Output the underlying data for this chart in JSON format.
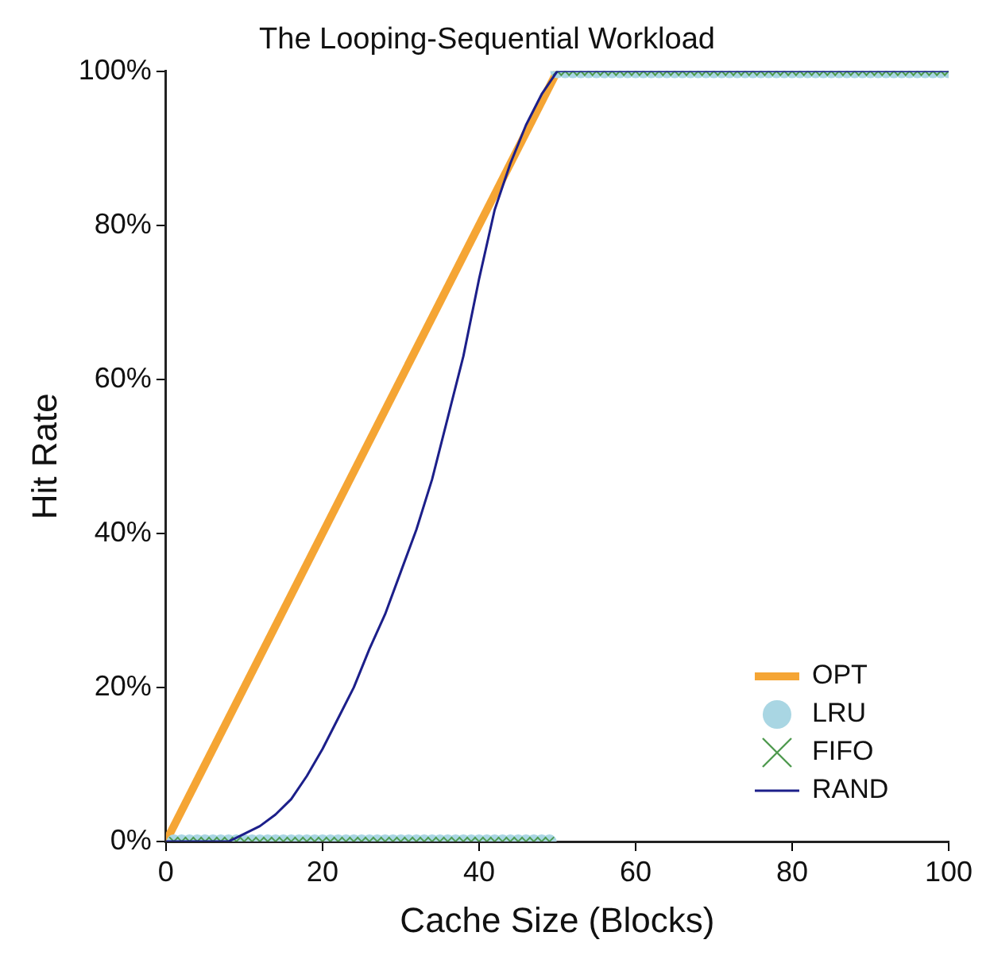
{
  "chart_data": {
    "type": "line",
    "title": "The Looping-Sequential Workload",
    "xlabel": "Cache Size (Blocks)",
    "ylabel": "Hit Rate",
    "x": [
      1,
      2,
      3,
      4,
      5,
      6,
      7,
      8,
      9,
      10,
      11,
      12,
      13,
      14,
      15,
      16,
      17,
      18,
      19,
      20,
      21,
      22,
      23,
      24,
      25,
      26,
      27,
      28,
      29,
      30,
      31,
      32,
      33,
      34,
      35,
      36,
      37,
      38,
      39,
      40,
      41,
      42,
      43,
      44,
      45,
      46,
      47,
      48,
      49,
      50,
      51,
      52,
      53,
      54,
      55,
      56,
      57,
      58,
      59,
      60,
      61,
      62,
      63,
      64,
      65,
      66,
      67,
      68,
      69,
      70,
      71,
      72,
      73,
      74,
      75,
      76,
      77,
      78,
      79,
      80,
      81,
      82,
      83,
      84,
      85,
      86,
      87,
      88,
      89,
      90,
      91,
      92,
      93,
      94,
      95,
      96,
      97,
      98,
      99,
      100
    ],
    "series": [
      {
        "name": "OPT",
        "color": "#f5a534",
        "marker": "none",
        "x": [
          0,
          50
        ],
        "values": [
          0,
          100
        ]
      },
      {
        "name": "LRU",
        "type": "scatter",
        "color": "#a9d6e3",
        "marker": "circle",
        "values": [
          0,
          0,
          0,
          0,
          0,
          0,
          0,
          0,
          0,
          0,
          0,
          0,
          0,
          0,
          0,
          0,
          0,
          0,
          0,
          0,
          0,
          0,
          0,
          0,
          0,
          0,
          0,
          0,
          0,
          0,
          0,
          0,
          0,
          0,
          0,
          0,
          0,
          0,
          0,
          0,
          0,
          0,
          0,
          0,
          0,
          0,
          0,
          0,
          0,
          100,
          100,
          100,
          100,
          100,
          100,
          100,
          100,
          100,
          100,
          100,
          100,
          100,
          100,
          100,
          100,
          100,
          100,
          100,
          100,
          100,
          100,
          100,
          100,
          100,
          100,
          100,
          100,
          100,
          100,
          100,
          100,
          100,
          100,
          100,
          100,
          100,
          100,
          100,
          100,
          100,
          100,
          100,
          100,
          100,
          100,
          100,
          100,
          100,
          100,
          100
        ]
      },
      {
        "name": "FIFO",
        "type": "scatter",
        "color": "#4f9a4f",
        "marker": "cross",
        "values": [
          0,
          0,
          0,
          0,
          0,
          0,
          0,
          0,
          0,
          0,
          0,
          0,
          0,
          0,
          0,
          0,
          0,
          0,
          0,
          0,
          0,
          0,
          0,
          0,
          0,
          0,
          0,
          0,
          0,
          0,
          0,
          0,
          0,
          0,
          0,
          0,
          0,
          0,
          0,
          0,
          0,
          0,
          0,
          0,
          0,
          0,
          0,
          0,
          0,
          100,
          100,
          100,
          100,
          100,
          100,
          100,
          100,
          100,
          100,
          100,
          100,
          100,
          100,
          100,
          100,
          100,
          100,
          100,
          100,
          100,
          100,
          100,
          100,
          100,
          100,
          100,
          100,
          100,
          100,
          100,
          100,
          100,
          100,
          100,
          100,
          100,
          100,
          100,
          100,
          100,
          100,
          100,
          100,
          100,
          100,
          100,
          100,
          100,
          100,
          100
        ]
      },
      {
        "name": "RAND",
        "color": "#1c1f8a",
        "marker": "none",
        "x": [
          0,
          2,
          4,
          6,
          8,
          10,
          12,
          14,
          16,
          18,
          20,
          22,
          24,
          26,
          28,
          30,
          32,
          34,
          36,
          38,
          40,
          42,
          44,
          46,
          48,
          50,
          60,
          70,
          80,
          90,
          100
        ],
        "values": [
          0,
          0,
          0,
          0,
          0,
          1,
          2,
          3.5,
          5.5,
          8.5,
          12,
          16,
          20,
          25,
          29.5,
          35,
          40.5,
          47,
          55,
          63,
          73,
          82,
          88,
          93,
          97,
          100,
          100,
          100,
          100,
          100,
          100
        ]
      }
    ],
    "xlim": [
      0,
      100
    ],
    "xticks": [
      0,
      20,
      40,
      60,
      80,
      100
    ],
    "ylim": [
      0,
      100
    ],
    "yticks": [
      {
        "value": 0,
        "label": "0%"
      },
      {
        "value": 20,
        "label": "20%"
      },
      {
        "value": 40,
        "label": "40%"
      },
      {
        "value": 60,
        "label": "60%"
      },
      {
        "value": 80,
        "label": "80%"
      },
      {
        "value": 100,
        "label": "100%"
      }
    ],
    "grid": false,
    "legend": "bottom right"
  }
}
